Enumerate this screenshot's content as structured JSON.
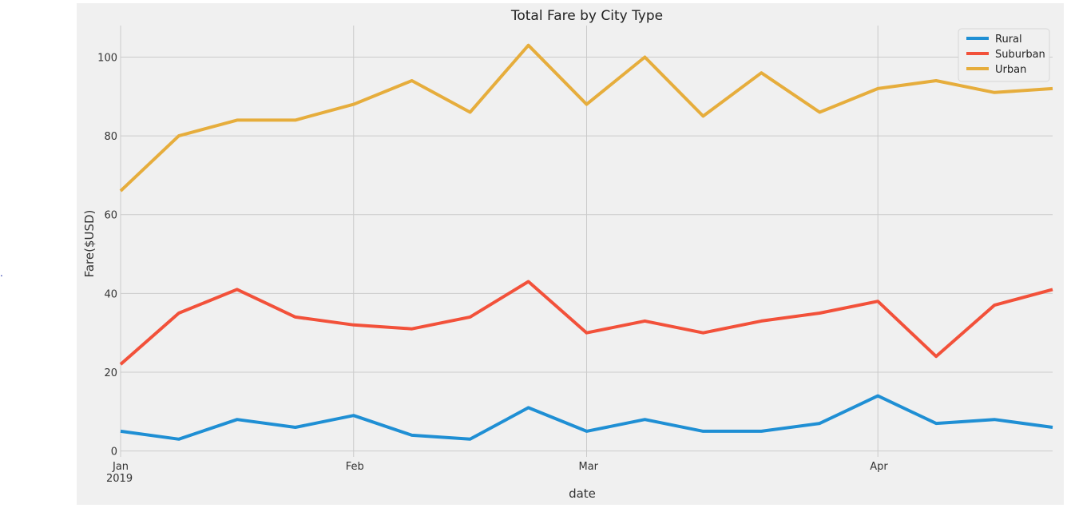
{
  "stray_mark": ".",
  "chart_data": {
    "type": "line",
    "title": "Total Fare by City Type",
    "xlabel": "date",
    "ylabel": "Fare($USD)",
    "x": [
      "2019-01-06",
      "2019-01-13",
      "2019-01-20",
      "2019-01-27",
      "2019-02-03",
      "2019-02-10",
      "2019-02-17",
      "2019-02-24",
      "2019-03-03",
      "2019-03-10",
      "2019-03-17",
      "2019-03-24",
      "2019-03-31",
      "2019-04-07",
      "2019-04-14",
      "2019-04-21",
      "2019-04-28"
    ],
    "xlim": [
      "2019-01-06",
      "2019-04-28"
    ],
    "ylim": [
      -1.5,
      108
    ],
    "yticks": [
      0,
      20,
      40,
      60,
      80,
      100
    ],
    "xticks": [
      {
        "date": "2019-01-06",
        "label": "Jan",
        "sublabel": "2019"
      },
      {
        "date": "2019-02-03",
        "label": "Feb",
        "sublabel": ""
      },
      {
        "date": "2019-03-03",
        "label": "Mar",
        "sublabel": ""
      },
      {
        "date": "2019-04-07",
        "label": "Apr",
        "sublabel": ""
      }
    ],
    "grid": true,
    "legend_position": "top-right",
    "series": [
      {
        "name": "Rural",
        "color": "#1f8fd4",
        "values": [
          5,
          3,
          8,
          6,
          9,
          4,
          3,
          11,
          5,
          8,
          5,
          5,
          7,
          14,
          7,
          8,
          6
        ]
      },
      {
        "name": "Suburban",
        "color": "#f2513a",
        "values": [
          22,
          35,
          41,
          34,
          32,
          31,
          34,
          43,
          30,
          33,
          30,
          33,
          35,
          38,
          24,
          37,
          41
        ]
      },
      {
        "name": "Urban",
        "color": "#e6ad3c",
        "values": [
          66,
          80,
          84,
          84,
          88,
          94,
          86,
          103,
          88,
          100,
          85,
          96,
          86,
          92,
          94,
          91,
          92
        ]
      }
    ]
  }
}
